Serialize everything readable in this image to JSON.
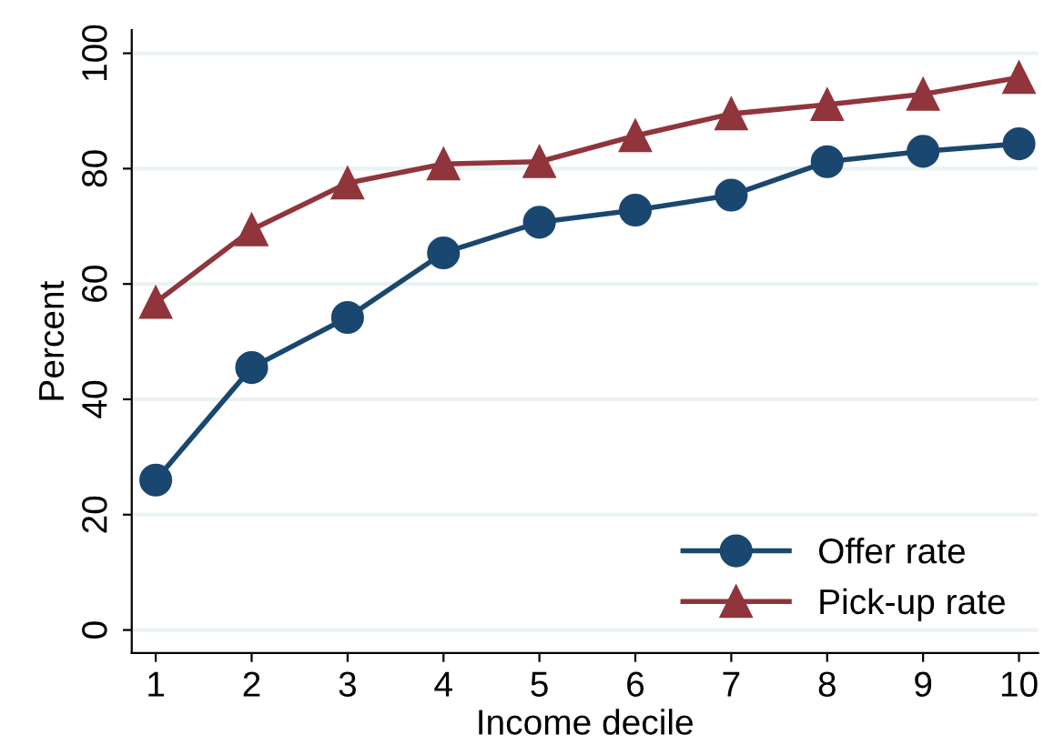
{
  "chart_data": {
    "type": "line",
    "xlabel": "Income decile",
    "ylabel": "Percent",
    "x": [
      1,
      2,
      3,
      4,
      5,
      6,
      7,
      8,
      9,
      10
    ],
    "series": [
      {
        "name": "Offer rate",
        "color": "#1a476f",
        "marker": "circle",
        "values": [
          26.0,
          45.5,
          54.2,
          65.4,
          70.7,
          72.8,
          75.4,
          81.2,
          83.0,
          84.3
        ]
      },
      {
        "name": "Pick-up rate",
        "color": "#90353b",
        "marker": "triangle",
        "values": [
          56.8,
          69.4,
          77.5,
          80.8,
          81.2,
          85.7,
          89.5,
          91.1,
          92.9,
          95.8
        ]
      }
    ],
    "xlim": [
      0.75,
      10.2
    ],
    "xticks": [
      1,
      2,
      3,
      4,
      5,
      6,
      7,
      8,
      9,
      10
    ],
    "ylim": [
      -4,
      104
    ],
    "yticks": [
      0,
      20,
      40,
      60,
      80,
      100
    ],
    "grid": "y",
    "legend": "bottom right",
    "line_style": "solid"
  }
}
